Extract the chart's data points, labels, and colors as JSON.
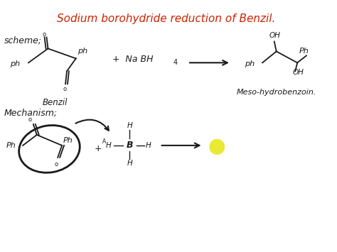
{
  "title": "Sodium borohydride reduction of Benzil.",
  "title_color": "#cc2200",
  "title_fontsize": 11,
  "bg_color": "#ffffff",
  "scheme_label": "scheme;",
  "mechanism_label": "Mechanism;",
  "benzil_label": "Benzil",
  "product_label": "Meso-hydrobenzoin.",
  "fig_width": 4.74,
  "fig_height": 3.55,
  "dpi": 100,
  "text_color": "#1a1a1a",
  "line_color": "#1a1a1a",
  "yellow_dot_color": "#e8e820"
}
